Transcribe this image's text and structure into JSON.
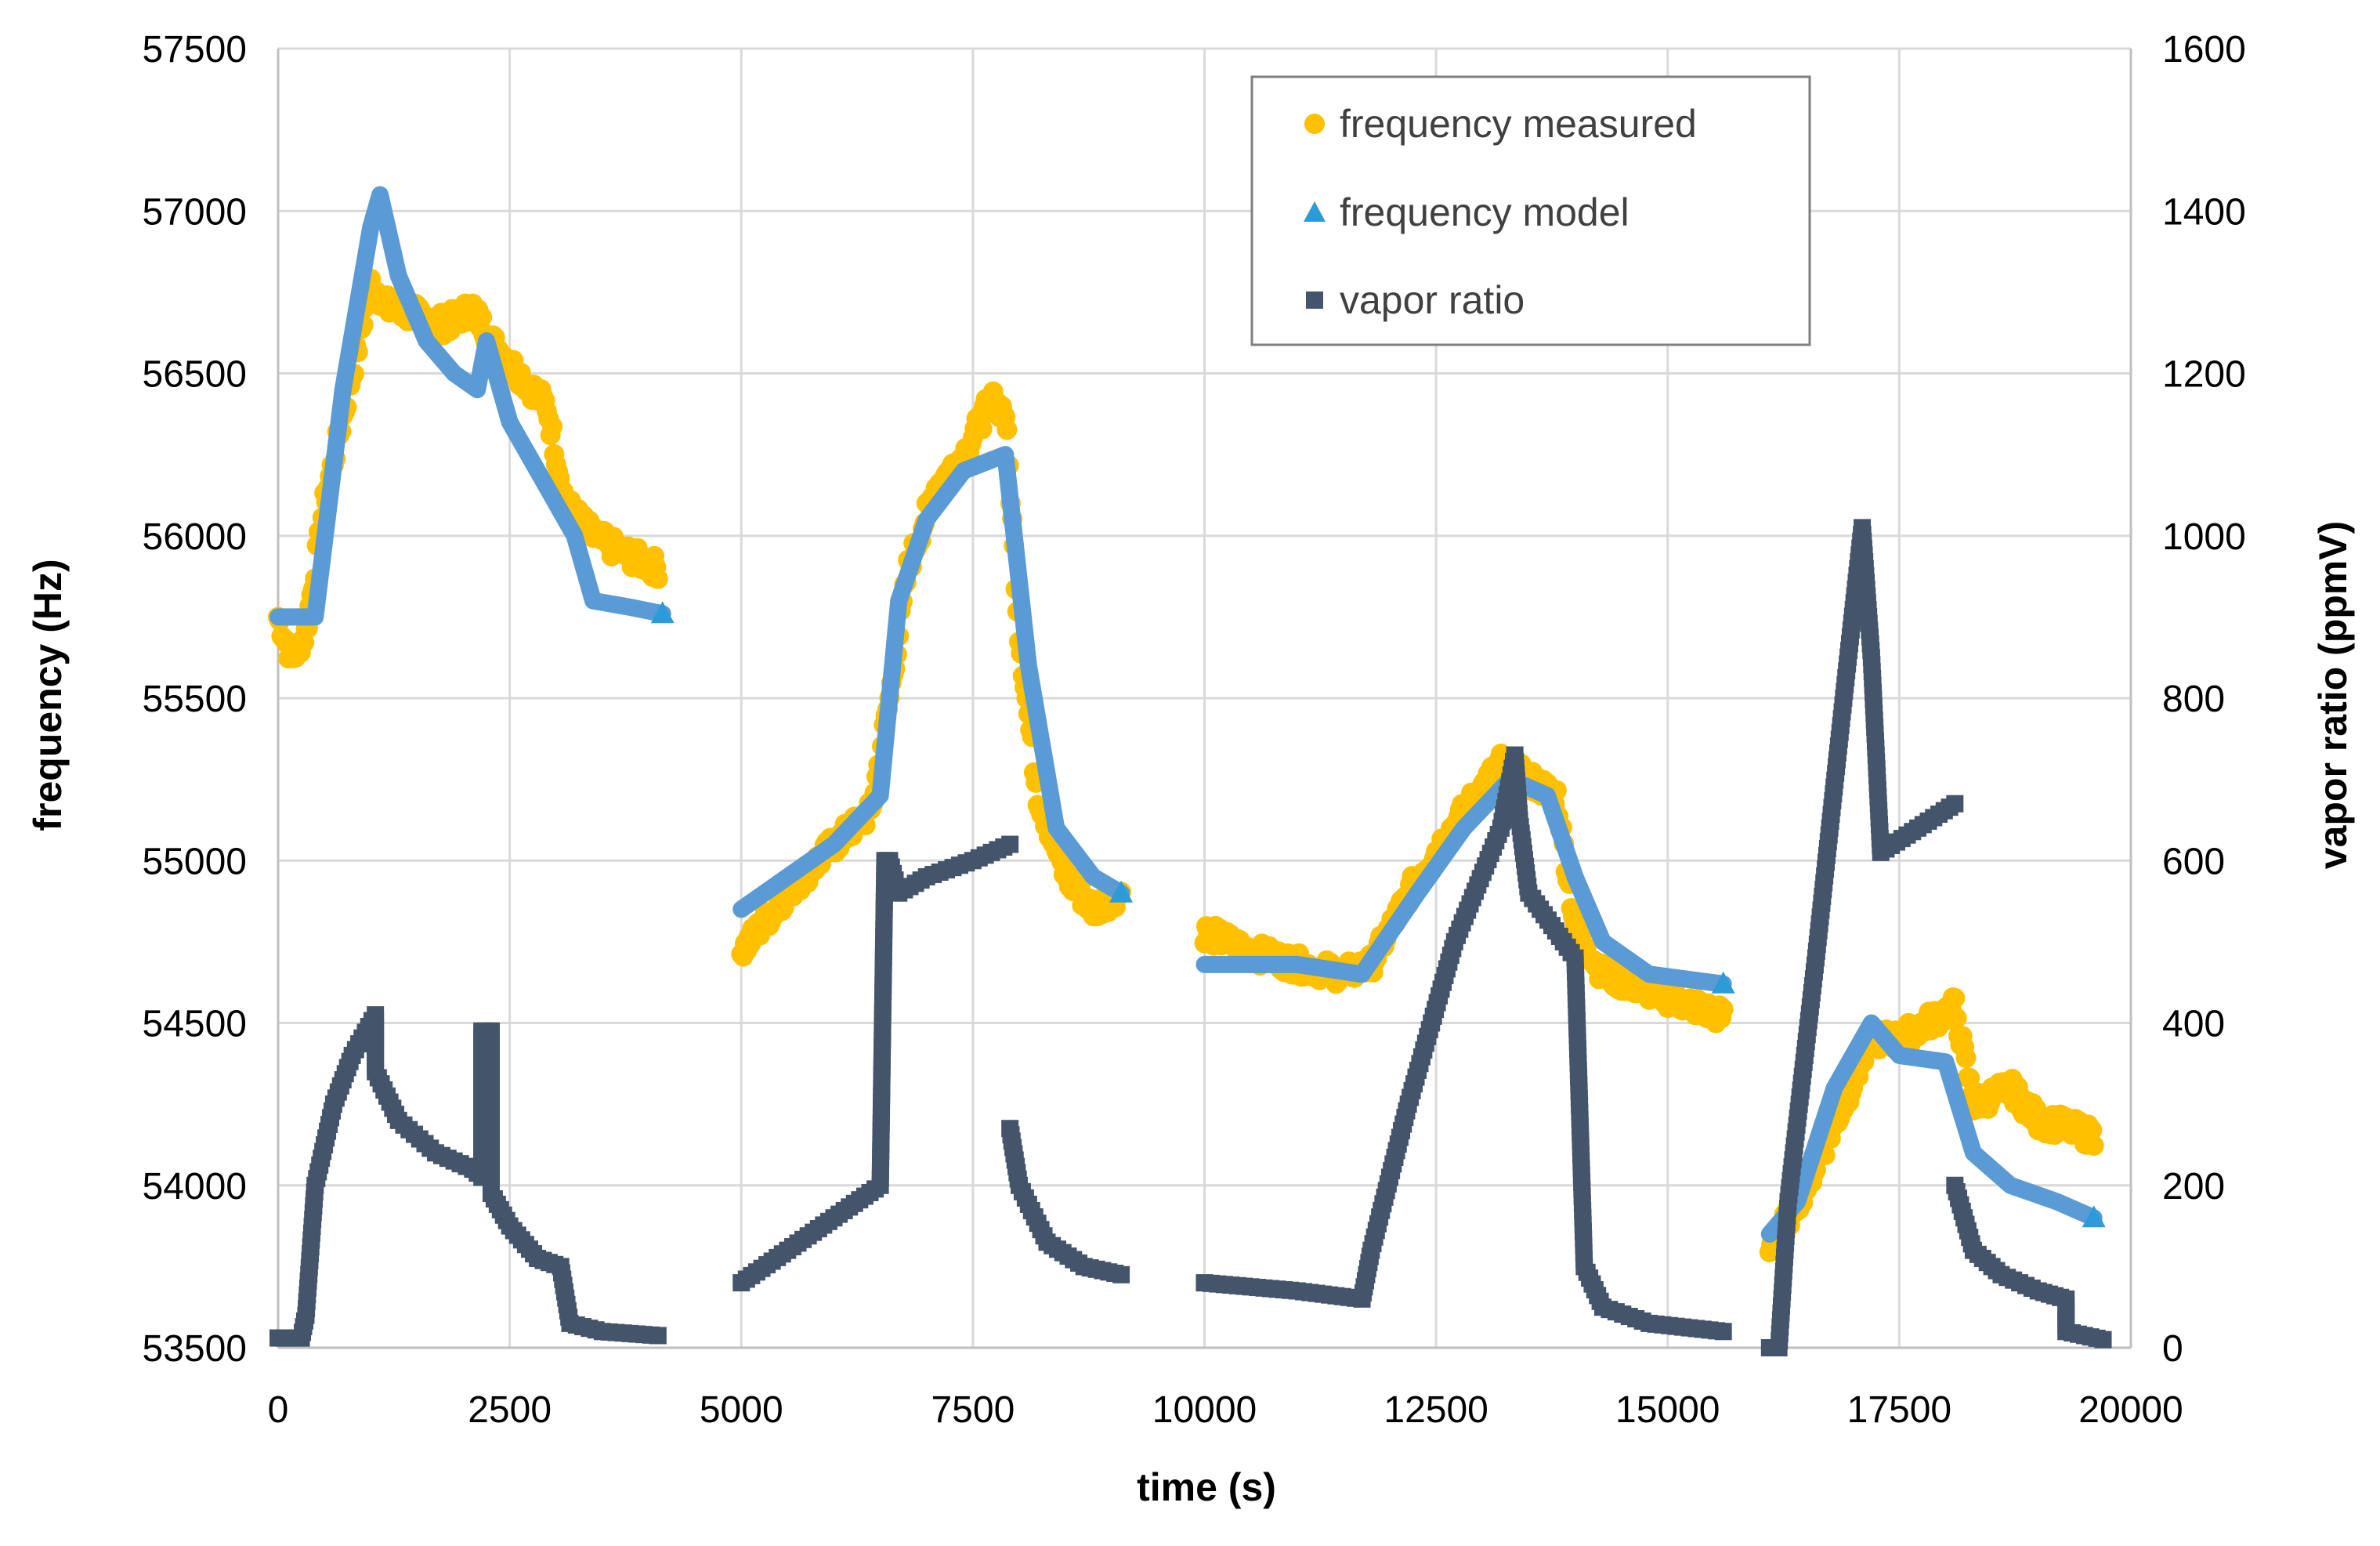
{
  "chart_data": {
    "type": "scatter",
    "title": "",
    "xlabel": "time (s)",
    "ylabel": "frequency (Hz)",
    "y2label": "vapor ratio (ppmV)",
    "xlim": [
      0,
      20000
    ],
    "ylim": [
      53500,
      57500
    ],
    "y2lim": [
      0,
      1600
    ],
    "grid": true,
    "legend_position": "top-right",
    "x_ticks": [
      "0",
      "2500",
      "5000",
      "7500",
      "10000",
      "12500",
      "15000",
      "17500",
      "20000"
    ],
    "y_ticks": [
      "53500",
      "54000",
      "54500",
      "55000",
      "55500",
      "56000",
      "56500",
      "57000",
      "57500"
    ],
    "y2_ticks": [
      "0",
      "200",
      "400",
      "600",
      "800",
      "1000",
      "1200",
      "1400",
      "1600"
    ],
    "colors": {
      "frequency_measured": "#FFC000",
      "frequency_model": "#5B9BD5",
      "frequency_model_marker": "#2E9BD9",
      "vapor_ratio": "#44546A",
      "grid": "#D9D9D9",
      "axis": "#BFBFBF"
    },
    "legend": [
      {
        "name": "frequency measured",
        "marker": "circle",
        "color": "#FFC000"
      },
      {
        "name": "frequency model",
        "marker": "triangle",
        "color": "#2E9BD9"
      },
      {
        "name": "vapor ratio",
        "marker": "square",
        "color": "#44546A"
      }
    ],
    "series": [
      {
        "name": "frequency measured",
        "axis": "left",
        "segments": [
          [
            [
              0,
              55750
            ],
            [
              150,
              55620
            ],
            [
              300,
              55700
            ],
            [
              500,
              56100
            ],
            [
              800,
              56500
            ],
            [
              1000,
              56780
            ],
            [
              1200,
              56700
            ],
            [
              1500,
              56680
            ],
            [
              1800,
              56650
            ],
            [
              2100,
              56700
            ],
            [
              2300,
              56600
            ],
            [
              2600,
              56500
            ],
            [
              2900,
              56400
            ],
            [
              3100,
              56100
            ],
            [
              3400,
              56000
            ],
            [
              3700,
              55950
            ],
            [
              4100,
              55900
            ]
          ],
          [
            [
              5000,
              54720
            ],
            [
              5500,
              54900
            ],
            [
              6000,
              55050
            ],
            [
              6400,
              55150
            ],
            [
              6600,
              55500
            ],
            [
              6800,
              55900
            ],
            [
              7100,
              56150
            ],
            [
              7400,
              56250
            ],
            [
              7700,
              56420
            ],
            [
              7850,
              56380
            ],
            [
              8000,
              55700
            ],
            [
              8200,
              55200
            ],
            [
              8500,
              54950
            ],
            [
              8800,
              54850
            ],
            [
              9100,
              54900
            ]
          ],
          [
            [
              10000,
              54780
            ],
            [
              10500,
              54720
            ],
            [
              11000,
              54680
            ],
            [
              11500,
              54650
            ],
            [
              11800,
              54680
            ],
            [
              12300,
              54950
            ],
            [
              12800,
              55150
            ],
            [
              13200,
              55300
            ],
            [
              13500,
              55250
            ],
            [
              13800,
              55200
            ],
            [
              14000,
              54800
            ],
            [
              14300,
              54650
            ],
            [
              14800,
              54600
            ],
            [
              15300,
              54550
            ],
            [
              15600,
              54520
            ]
          ],
          [
            [
              16100,
              53800
            ],
            [
              16500,
              54000
            ],
            [
              16900,
              54250
            ],
            [
              17200,
              54450
            ],
            [
              17500,
              54450
            ],
            [
              17800,
              54500
            ],
            [
              18100,
              54550
            ],
            [
              18300,
              54250
            ],
            [
              18700,
              54300
            ],
            [
              19000,
              54200
            ],
            [
              19300,
              54180
            ],
            [
              19600,
              54150
            ]
          ]
        ]
      },
      {
        "name": "frequency model",
        "axis": "left",
        "segments": [
          [
            [
              0,
              55750
            ],
            [
              400,
              55750
            ],
            [
              700,
              56450
            ],
            [
              1000,
              56950
            ],
            [
              1100,
              57050
            ],
            [
              1300,
              56800
            ],
            [
              1600,
              56600
            ],
            [
              1900,
              56500
            ],
            [
              2150,
              56450
            ],
            [
              2250,
              56600
            ],
            [
              2500,
              56350
            ],
            [
              2800,
              56200
            ],
            [
              3200,
              56000
            ],
            [
              3400,
              55800
            ],
            [
              3800,
              55780
            ],
            [
              4150,
              55760
            ]
          ],
          [
            [
              5000,
              54850
            ],
            [
              6000,
              55050
            ],
            [
              6500,
              55200
            ],
            [
              6700,
              55800
            ],
            [
              7000,
              56050
            ],
            [
              7400,
              56200
            ],
            [
              7850,
              56250
            ],
            [
              8100,
              55600
            ],
            [
              8400,
              55100
            ],
            [
              8800,
              54950
            ],
            [
              9100,
              54900
            ]
          ],
          [
            [
              10000,
              54680
            ],
            [
              11000,
              54680
            ],
            [
              11700,
              54650
            ],
            [
              12300,
              54900
            ],
            [
              12800,
              55100
            ],
            [
              13300,
              55250
            ],
            [
              13700,
              55200
            ],
            [
              14000,
              54950
            ],
            [
              14300,
              54750
            ],
            [
              14800,
              54650
            ],
            [
              15600,
              54620
            ]
          ],
          [
            [
              16100,
              53850
            ],
            [
              16400,
              53950
            ],
            [
              16800,
              54300
            ],
            [
              17200,
              54500
            ],
            [
              17500,
              54400
            ],
            [
              18000,
              54380
            ],
            [
              18300,
              54100
            ],
            [
              18700,
              54000
            ],
            [
              19200,
              53950
            ],
            [
              19600,
              53900
            ]
          ]
        ]
      },
      {
        "name": "vapor ratio",
        "axis": "right",
        "segments": [
          [
            [
              0,
              12
            ],
            [
              250,
              12
            ],
            [
              300,
              40
            ],
            [
              400,
              200
            ],
            [
              600,
              300
            ],
            [
              800,
              360
            ],
            [
              1050,
              410
            ],
            [
              1050,
              340
            ],
            [
              1300,
              280
            ],
            [
              1700,
              240
            ],
            [
              2100,
              220
            ],
            [
              2200,
              210
            ],
            [
              2200,
              390
            ],
            [
              2300,
              390
            ],
            [
              2300,
              190
            ],
            [
              2500,
              150
            ],
            [
              2800,
              110
            ],
            [
              3050,
              100
            ],
            [
              3150,
              30
            ],
            [
              3500,
              20
            ],
            [
              4100,
              15
            ]
          ],
          [
            [
              5000,
              80
            ],
            [
              5500,
              120
            ],
            [
              6000,
              160
            ],
            [
              6500,
              200
            ],
            [
              6550,
              600
            ],
            [
              6600,
              600
            ],
            [
              6700,
              560
            ],
            [
              7000,
              580
            ],
            [
              7500,
              600
            ],
            [
              7900,
              620
            ]
          ],
          [
            [
              7900,
              270
            ],
            [
              8000,
              200
            ],
            [
              8300,
              130
            ],
            [
              8700,
              100
            ],
            [
              9100,
              90
            ]
          ],
          [
            [
              10000,
              80
            ],
            [
              11000,
              70
            ],
            [
              11700,
              60
            ],
            [
              11800,
              120
            ],
            [
              12200,
              300
            ],
            [
              12700,
              500
            ],
            [
              13200,
              640
            ],
            [
              13350,
              730
            ],
            [
              13400,
              650
            ],
            [
              13500,
              560
            ],
            [
              14000,
              480
            ],
            [
              14100,
              100
            ],
            [
              14300,
              50
            ],
            [
              14800,
              30
            ],
            [
              15600,
              20
            ]
          ],
          [
            [
              16100,
              0
            ],
            [
              16200,
              0
            ],
            [
              16300,
              180
            ],
            [
              16600,
              480
            ],
            [
              16900,
              800
            ],
            [
              17100,
              1010
            ],
            [
              17200,
              850
            ],
            [
              17300,
              610
            ],
            [
              17700,
              640
            ],
            [
              18100,
              670
            ]
          ],
          [
            [
              18100,
              200
            ],
            [
              18300,
              120
            ],
            [
              18600,
              90
            ],
            [
              19000,
              70
            ],
            [
              19300,
              60
            ],
            [
              19300,
              20
            ],
            [
              19700,
              10
            ]
          ]
        ]
      }
    ]
  }
}
